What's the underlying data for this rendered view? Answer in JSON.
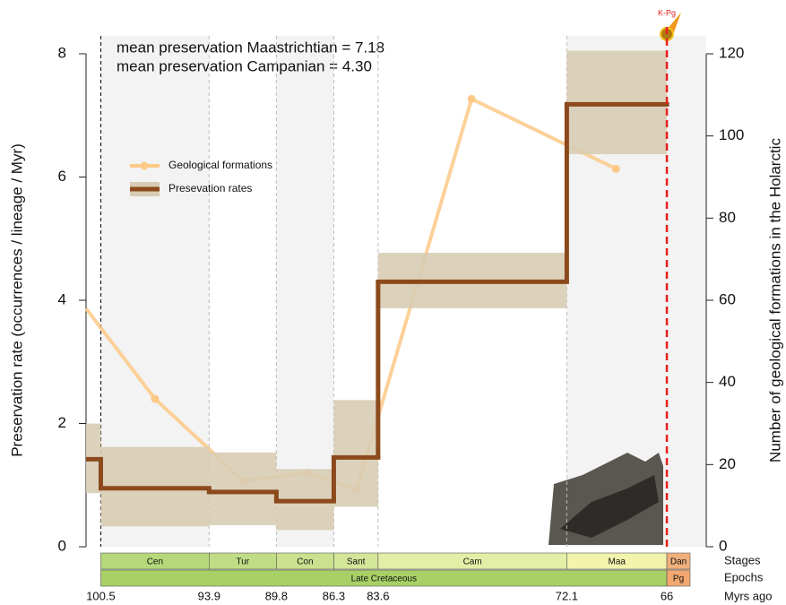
{
  "chart_data": {
    "type": "step",
    "annotations": [
      "mean preservation Maastrichtian = 7.18",
      "mean preservation Campanian = 4.30"
    ],
    "ylabel": "Preservation rate (occurrences / lineage / Myr)",
    "y2label": "Number of geological formations in the Holarctic",
    "xlabel": "Myrs ago",
    "xlim": [
      101.4,
      63.6
    ],
    "xticks": [
      100.5,
      93.9,
      89.8,
      86.3,
      83.6,
      72.1,
      66
    ],
    "ylim": [
      0,
      8
    ],
    "yticks": [
      0,
      2,
      4,
      6,
      8
    ],
    "y2lim": [
      0,
      120
    ],
    "y2ticks": [
      0,
      20,
      40,
      60,
      80,
      100,
      120
    ],
    "stages": {
      "label": "Stages",
      "names": [
        "Cen",
        "Tur",
        "Con",
        "Sant",
        "Cam",
        "Maa",
        "Dan"
      ],
      "colors": [
        "#b5d97a",
        "#c0dd86",
        "#cbe190",
        "#d4e69a",
        "#e3eea6",
        "#f2f3ad",
        "#f0b07c"
      ]
    },
    "epochs": {
      "label": "Epochs",
      "names": [
        "Late Cretaceous",
        "Pg"
      ],
      "colors": [
        "#a8d066",
        "#f2a870"
      ]
    },
    "event": {
      "label": "K-Pg",
      "x": 66,
      "color": "#e8201d"
    },
    "series": [
      {
        "name": "Geological formations",
        "color": "#fcc987",
        "axis": "y2",
        "x": [
          101.4,
          97.2,
          91.8,
          87.9,
          84.9,
          77.9,
          69.1
        ],
        "values": [
          58,
          36,
          16,
          18,
          14,
          109,
          92
        ]
      },
      {
        "name": "Presevation rates",
        "color": "#8c4a1c",
        "band_color": "#d8ccb4",
        "edges": [
          101.4,
          100.5,
          93.9,
          89.8,
          86.3,
          83.6,
          72.1,
          66
        ],
        "values": [
          1.42,
          0.95,
          0.89,
          0.74,
          1.45,
          4.3,
          7.18
        ],
        "lower": [
          0.87,
          0.33,
          0.35,
          0.27,
          0.65,
          3.87,
          6.37
        ],
        "upper": [
          2.0,
          1.62,
          1.53,
          1.26,
          2.38,
          4.77,
          8.05
        ]
      }
    ]
  }
}
